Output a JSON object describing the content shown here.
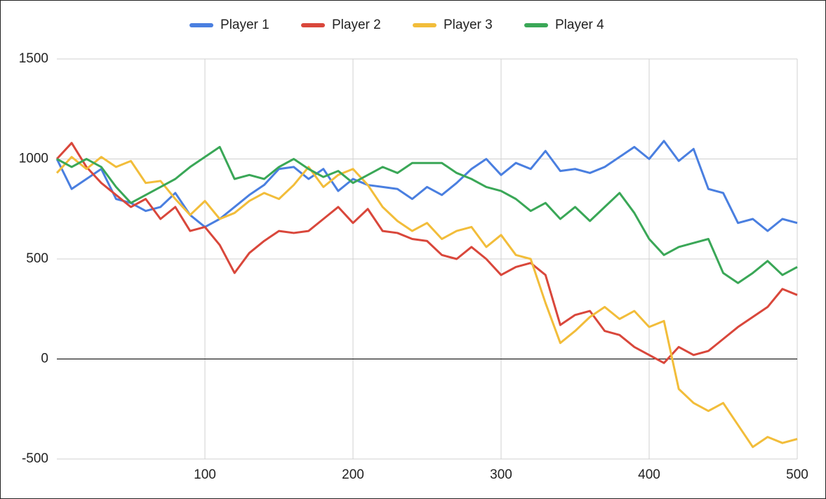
{
  "chart_data": {
    "type": "line",
    "x": [
      0,
      10,
      20,
      30,
      40,
      50,
      60,
      70,
      80,
      90,
      100,
      110,
      120,
      130,
      140,
      150,
      160,
      170,
      180,
      190,
      200,
      210,
      220,
      230,
      240,
      250,
      260,
      270,
      280,
      290,
      300,
      310,
      320,
      330,
      340,
      350,
      360,
      370,
      380,
      390,
      400,
      410,
      420,
      430,
      440,
      450,
      460,
      470,
      480,
      490,
      500
    ],
    "series": [
      {
        "name": "Player 1",
        "color": "#4a7fe0",
        "values": [
          1000,
          850,
          900,
          950,
          800,
          780,
          740,
          760,
          830,
          720,
          660,
          700,
          760,
          820,
          870,
          950,
          960,
          900,
          950,
          840,
          900,
          870,
          860,
          850,
          800,
          860,
          820,
          880,
          950,
          1000,
          920,
          980,
          950,
          1040,
          940,
          950,
          930,
          960,
          1010,
          1060,
          1000,
          1090,
          990,
          1050,
          850,
          830,
          680,
          700,
          640,
          700,
          680
        ]
      },
      {
        "name": "Player 2",
        "color": "#d9473b",
        "values": [
          1000,
          1080,
          960,
          880,
          820,
          760,
          800,
          700,
          760,
          640,
          660,
          570,
          430,
          530,
          590,
          640,
          630,
          640,
          700,
          760,
          680,
          750,
          640,
          630,
          600,
          590,
          520,
          500,
          560,
          500,
          420,
          460,
          480,
          420,
          170,
          220,
          240,
          140,
          120,
          60,
          20,
          -20,
          60,
          20,
          40,
          100,
          160,
          210,
          260,
          350,
          320
        ]
      },
      {
        "name": "Player 3",
        "color": "#f2bd3a",
        "values": [
          930,
          1010,
          950,
          1010,
          960,
          990,
          880,
          890,
          800,
          720,
          790,
          700,
          730,
          790,
          830,
          800,
          870,
          960,
          860,
          920,
          950,
          870,
          760,
          690,
          640,
          680,
          600,
          640,
          660,
          560,
          620,
          520,
          500,
          280,
          80,
          140,
          210,
          260,
          200,
          240,
          160,
          190,
          -150,
          -220,
          -260,
          -220,
          -330,
          -440,
          -390,
          -420,
          -400
        ]
      },
      {
        "name": "Player 4",
        "color": "#3aa757",
        "values": [
          1000,
          960,
          1000,
          960,
          860,
          780,
          820,
          860,
          900,
          960,
          1010,
          1060,
          900,
          920,
          900,
          960,
          1000,
          950,
          910,
          940,
          880,
          920,
          960,
          930,
          980,
          980,
          980,
          930,
          900,
          860,
          840,
          800,
          740,
          780,
          700,
          760,
          690,
          760,
          830,
          730,
          600,
          520,
          560,
          580,
          600,
          430,
          380,
          430,
          490,
          420,
          460
        ]
      }
    ],
    "xlim": [
      0,
      500
    ],
    "xticks": [
      100,
      200,
      300,
      400,
      500
    ],
    "ylim": [
      -500,
      1500
    ],
    "yticks": [
      -500,
      0,
      500,
      1000,
      1500
    ],
    "grid": true,
    "legend": "top"
  }
}
